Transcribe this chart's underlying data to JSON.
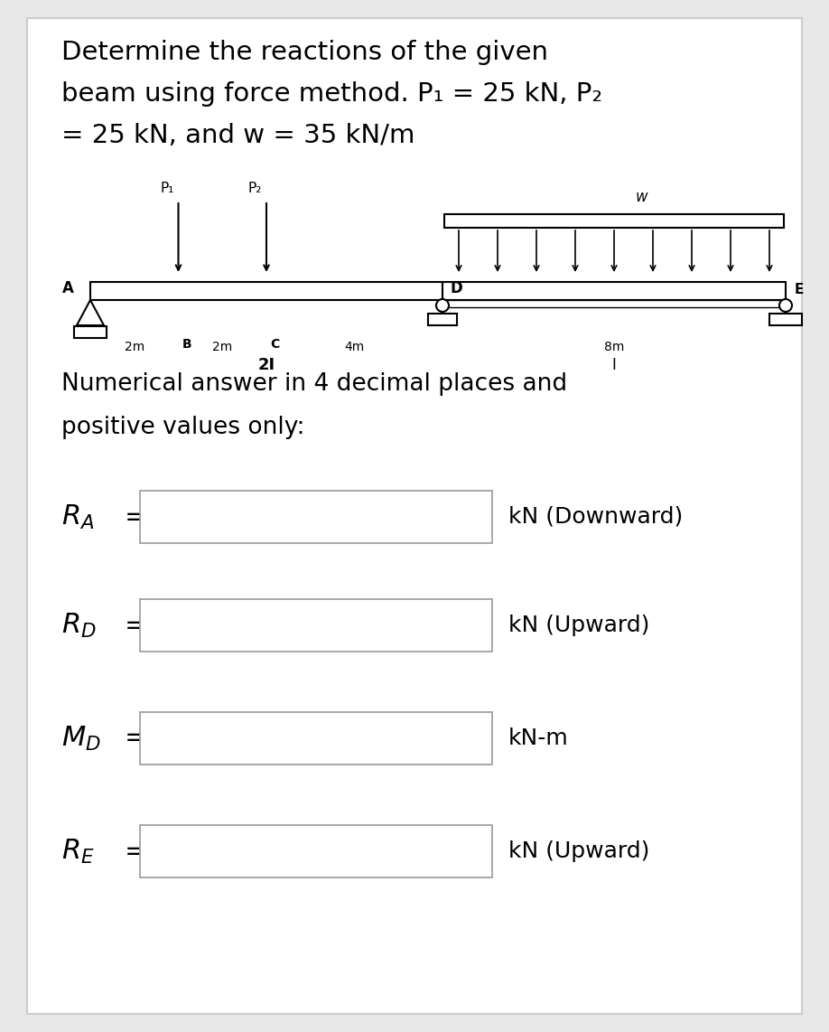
{
  "title_line1": "Determine the reactions of the given",
  "title_line2": "beam using force method. P₁ = 25 kN, P₂",
  "title_line3": "= 25 kN, and w = 35 kN/m",
  "subtitle1": "Numerical answer in 4 decimal places and",
  "subtitle2": "positive values only:",
  "units": [
    "kN (Downward)",
    "kN (Upward)",
    "kN-m",
    "kN (Upward)"
  ],
  "bg_color": "#e8e8e8",
  "page_color": "#ffffff",
  "text_color": "#000000",
  "box_border": "#999999"
}
